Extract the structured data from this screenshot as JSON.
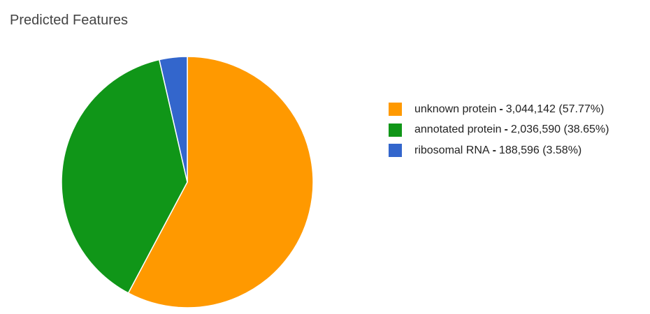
{
  "chart_data": {
    "type": "pie",
    "title": "Predicted Features",
    "separator": "-",
    "series": [
      {
        "name": "unknown protein",
        "value": 3044142,
        "value_label": "3,044,142",
        "percent_label": "(57.77%)",
        "color": "#ff9900"
      },
      {
        "name": "annotated protein",
        "value": 2036590,
        "value_label": "2,036,590",
        "percent_label": "(38.65%)",
        "color": "#109618"
      },
      {
        "name": "ribosomal RNA",
        "value": 188596,
        "value_label": "188,596",
        "percent_label": "(3.58%)",
        "color": "#3366cc"
      }
    ],
    "start_angle": "12 o'clock",
    "direction": "clockwise",
    "legend_position": "right"
  }
}
